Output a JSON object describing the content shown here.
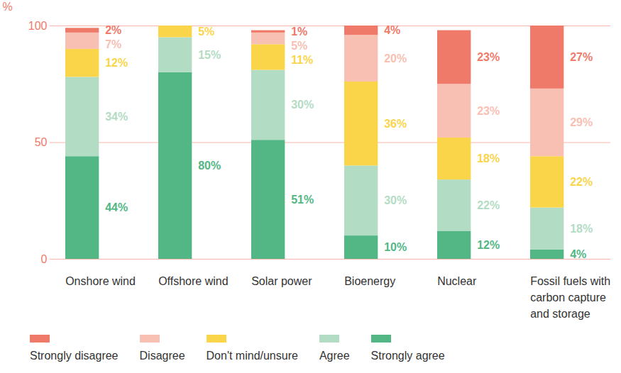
{
  "chart_data": {
    "type": "bar",
    "stacked": true,
    "data_labels": true,
    "grid": true,
    "legend": "bottom",
    "categories": [
      "Onshore wind",
      "Offshore wind",
      "Solar power",
      "Bioenergy",
      "Nuclear",
      "Fossil fuels with carbon capture and storage"
    ],
    "series": [
      {
        "name": "Strongly disagree",
        "color": "#ef7a6a",
        "values": [
          2,
          null,
          1,
          4,
          23,
          27
        ],
        "value_labels": [
          "2%",
          null,
          "1%",
          "4%",
          "23%",
          "27%"
        ]
      },
      {
        "name": "Disagree",
        "color": "#f8bfb3",
        "values": [
          7,
          null,
          5,
          20,
          23,
          29
        ],
        "value_labels": [
          "7%",
          null,
          "5%",
          "20%",
          "23%",
          "29%"
        ]
      },
      {
        "name": "Don't mind/unsure",
        "color": "#fad54a",
        "values": [
          12,
          5,
          11,
          36,
          18,
          22
        ],
        "value_labels": [
          "12%",
          "5%",
          "11%",
          "36%",
          "18%",
          "22%"
        ]
      },
      {
        "name": "Agree",
        "color": "#b3dcc4",
        "values": [
          34,
          15,
          30,
          30,
          22,
          18
        ],
        "value_labels": [
          "34%",
          "15%",
          "30%",
          "30%",
          "22%",
          "18%"
        ]
      },
      {
        "name": "Strongly agree",
        "color": "#52b785",
        "values": [
          44,
          80,
          51,
          10,
          12,
          4
        ],
        "value_labels": [
          "44%",
          "80%",
          "51%",
          "10%",
          "12%",
          "4%"
        ]
      }
    ],
    "y_label": "%",
    "ylim": [
      0,
      100
    ],
    "yticks": [
      0,
      50,
      100
    ]
  }
}
